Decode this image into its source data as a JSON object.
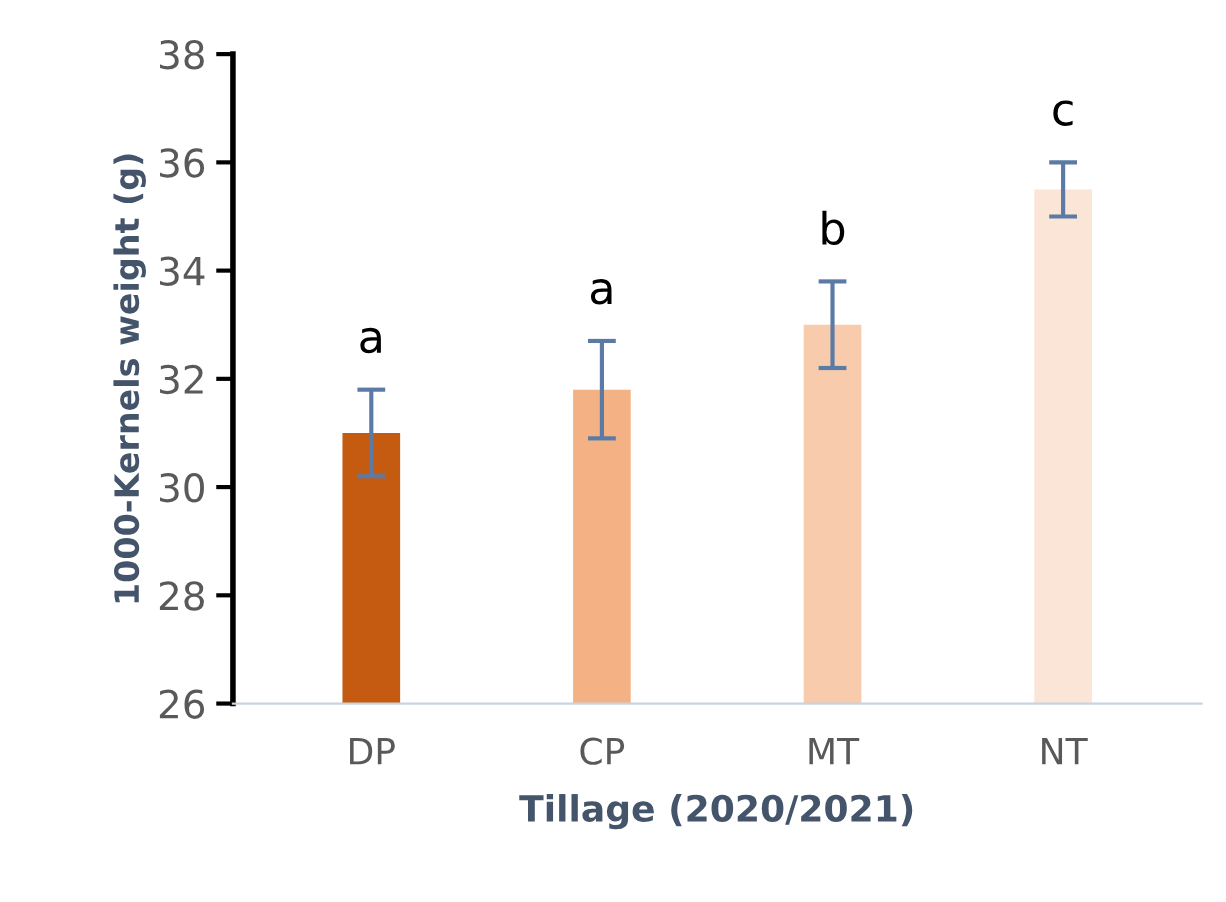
{
  "chart_data": {
    "type": "bar",
    "xlabel": "Tillage (2020/2021)",
    "ylabel": "1000-Kernels weight (g)",
    "categories": [
      "DP",
      "CP",
      "MT",
      "NT"
    ],
    "values": [
      31.0,
      31.8,
      33.0,
      35.5
    ],
    "colors": [
      "#c55a11",
      "#f4b183",
      "#f8cbad",
      "#fbe5d6"
    ],
    "errors": [
      0.8,
      0.9,
      0.8,
      0.5
    ],
    "ylim": [
      26,
      38
    ],
    "yticks": [
      26,
      28,
      30,
      32,
      34,
      36,
      38
    ],
    "grid": false,
    "legend": false,
    "annotations": [
      "a",
      "a",
      "b",
      "c"
    ]
  }
}
